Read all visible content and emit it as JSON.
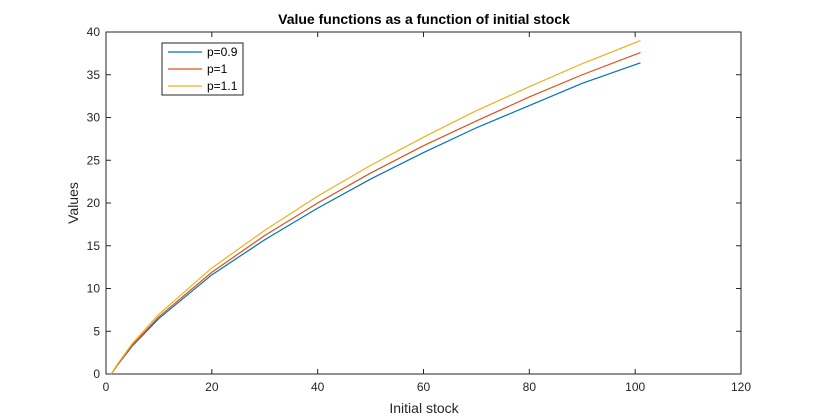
{
  "chart_data": {
    "type": "line",
    "title": "Value functions as a function of initial stock",
    "xlabel": "Initial stock",
    "ylabel": "Values",
    "xlim": [
      0,
      120
    ],
    "ylim": [
      0,
      40
    ],
    "xticks": [
      0,
      20,
      40,
      60,
      80,
      100,
      120
    ],
    "yticks": [
      0,
      5,
      10,
      15,
      20,
      25,
      30,
      35,
      40
    ],
    "grid": false,
    "legend": {
      "placement": "top-left"
    },
    "x": [
      1,
      2,
      5,
      10,
      20,
      30,
      40,
      50,
      60,
      70,
      80,
      90,
      101
    ],
    "series": [
      {
        "name": "p=0.9",
        "color": "#0072BD",
        "values": [
          0,
          0.9,
          3.3,
          6.5,
          11.6,
          15.7,
          19.4,
          22.8,
          25.9,
          28.8,
          31.4,
          34.0,
          36.4
        ]
      },
      {
        "name": "p=1",
        "color": "#D95319",
        "values": [
          0,
          0.95,
          3.4,
          6.7,
          11.9,
          16.2,
          20.0,
          23.5,
          26.7,
          29.6,
          32.4,
          35.0,
          37.6
        ]
      },
      {
        "name": "p=1.1",
        "color": "#EDB120",
        "values": [
          0,
          1.0,
          3.6,
          7.0,
          12.4,
          16.8,
          20.8,
          24.4,
          27.7,
          30.8,
          33.6,
          36.3,
          39.0
        ]
      }
    ]
  }
}
